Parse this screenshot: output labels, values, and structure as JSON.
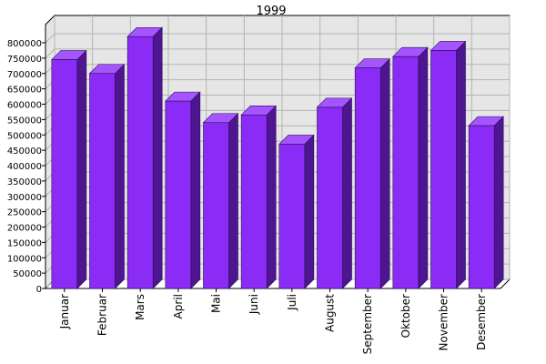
{
  "chart_data": {
    "type": "bar",
    "title": "1999",
    "xlabel": "",
    "ylabel": "",
    "categories": [
      "Januar",
      "Februar",
      "Mars",
      "April",
      "Mai",
      "Juni",
      "Juli",
      "August",
      "September",
      "Oktober",
      "November",
      "Desember"
    ],
    "values": [
      745000,
      700000,
      820000,
      610000,
      540000,
      565000,
      470000,
      590000,
      718000,
      755000,
      775000,
      530000
    ],
    "ylim": [
      0,
      800000
    ],
    "yticks": [
      "0",
      "50000",
      "100000",
      "150000",
      "200000",
      "250000",
      "300000",
      "350000",
      "400000",
      "450000",
      "500000",
      "550000",
      "600000",
      "650000",
      "700000",
      "750000",
      "800000"
    ],
    "grid": true,
    "legend": "none",
    "colors": {
      "bar_front": "#8a2cf5",
      "bar_top": "#a555ff",
      "bar_side": "#4e1590",
      "plot_bg": "#e6e6e6",
      "grid": "#b4b4b4",
      "axis": "#000000"
    }
  }
}
